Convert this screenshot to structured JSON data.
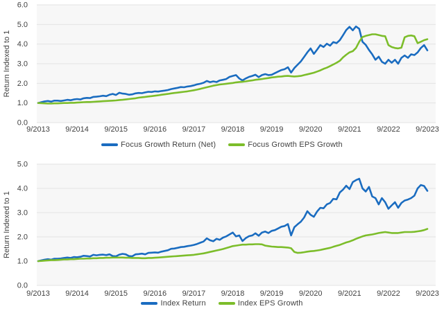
{
  "page": {
    "background": "#ffffff"
  },
  "colors": {
    "blue": "#1a6cc0",
    "green": "#7cbd2a",
    "grid": "#e3e3e3",
    "plot_bg": "#f7f7f7",
    "text": "#3f3f3f"
  },
  "chart_data": [
    {
      "type": "line",
      "title": "",
      "xlabel": "",
      "ylabel": "Return Indexed to 1",
      "ylim": [
        0,
        6
      ],
      "ytick_step": 1,
      "ytick_format_decimals": 1,
      "grid": "horizontal",
      "legend_position": "bottom",
      "frequency": "monthly",
      "x_start": "9/2013",
      "x_end": "9/2023",
      "x_tick_labels": [
        "9/2013",
        "9/2014",
        "9/2015",
        "9/2016",
        "9/2017",
        "9/2018",
        "9/2019",
        "9/2020",
        "9/2021",
        "9/2022",
        "9/2023"
      ],
      "series": [
        {
          "name": "Focus Growth Return (Net)",
          "color": "#1a6cc0",
          "values": [
            1.0,
            1.04,
            1.08,
            1.1,
            1.07,
            1.12,
            1.12,
            1.1,
            1.13,
            1.16,
            1.14,
            1.18,
            1.2,
            1.18,
            1.24,
            1.26,
            1.25,
            1.31,
            1.32,
            1.34,
            1.37,
            1.35,
            1.42,
            1.46,
            1.41,
            1.52,
            1.48,
            1.46,
            1.42,
            1.44,
            1.49,
            1.51,
            1.5,
            1.54,
            1.57,
            1.56,
            1.59,
            1.58,
            1.61,
            1.63,
            1.66,
            1.71,
            1.74,
            1.77,
            1.81,
            1.8,
            1.84,
            1.86,
            1.9,
            1.95,
            1.98,
            2.03,
            2.12,
            2.06,
            2.1,
            2.07,
            2.15,
            2.18,
            2.22,
            2.33,
            2.38,
            2.42,
            2.25,
            2.15,
            2.25,
            2.33,
            2.38,
            2.44,
            2.32,
            2.42,
            2.47,
            2.42,
            2.44,
            2.52,
            2.6,
            2.68,
            2.72,
            2.82,
            2.55,
            2.78,
            2.95,
            3.12,
            3.35,
            3.58,
            3.78,
            3.5,
            3.72,
            3.95,
            3.85,
            4.02,
            3.92,
            4.1,
            4.05,
            4.2,
            4.45,
            4.72,
            4.88,
            4.7,
            4.9,
            4.78,
            4.12,
            3.96,
            3.7,
            3.48,
            3.2,
            3.36,
            3.1,
            3.0,
            3.2,
            3.05,
            3.2,
            3.0,
            3.3,
            3.42,
            3.3,
            3.48,
            3.44,
            3.58,
            3.8,
            3.95,
            3.68
          ]
        },
        {
          "name": "Focus Growth EPS Growth",
          "color": "#7cbd2a",
          "values": [
            1.0,
            0.99,
            0.98,
            0.97,
            0.97,
            0.98,
            0.98,
            0.99,
            1.0,
            1.0,
            1.01,
            1.01,
            1.02,
            1.03,
            1.04,
            1.05,
            1.05,
            1.06,
            1.07,
            1.08,
            1.09,
            1.1,
            1.11,
            1.12,
            1.13,
            1.15,
            1.16,
            1.18,
            1.2,
            1.22,
            1.24,
            1.27,
            1.29,
            1.31,
            1.33,
            1.35,
            1.37,
            1.39,
            1.42,
            1.44,
            1.46,
            1.49,
            1.51,
            1.53,
            1.55,
            1.57,
            1.59,
            1.62,
            1.65,
            1.68,
            1.72,
            1.76,
            1.8,
            1.84,
            1.88,
            1.91,
            1.94,
            1.96,
            1.98,
            2.0,
            2.02,
            2.05,
            2.07,
            2.08,
            2.1,
            2.13,
            2.15,
            2.18,
            2.2,
            2.22,
            2.25,
            2.27,
            2.3,
            2.32,
            2.34,
            2.35,
            2.37,
            2.38,
            2.36,
            2.35,
            2.36,
            2.38,
            2.42,
            2.46,
            2.5,
            2.54,
            2.6,
            2.66,
            2.74,
            2.8,
            2.88,
            2.96,
            3.05,
            3.15,
            3.32,
            3.46,
            3.58,
            3.64,
            3.8,
            4.12,
            4.36,
            4.42,
            4.46,
            4.5,
            4.5,
            4.46,
            4.42,
            4.4,
            3.95,
            3.85,
            3.8,
            3.78,
            3.82,
            4.35,
            4.42,
            4.44,
            4.4,
            4.05,
            4.12,
            4.2,
            4.25
          ]
        }
      ]
    },
    {
      "type": "line",
      "title": "",
      "xlabel": "",
      "ylabel": "Return Indexed to 1",
      "ylim": [
        0,
        5
      ],
      "ytick_step": 1,
      "ytick_format_decimals": 1,
      "grid": "horizontal",
      "legend_position": "bottom",
      "frequency": "monthly",
      "x_start": "9/2013",
      "x_end": "9/2023",
      "x_tick_labels": [
        "9/2013",
        "9/2014",
        "9/2015",
        "9/2016",
        "9/2017",
        "9/2018",
        "9/2019",
        "9/2020",
        "9/2021",
        "9/2022",
        "9/2023"
      ],
      "series": [
        {
          "name": "Index Return",
          "color": "#1a6cc0",
          "values": [
            1.0,
            1.03,
            1.06,
            1.08,
            1.06,
            1.1,
            1.1,
            1.11,
            1.13,
            1.15,
            1.13,
            1.17,
            1.16,
            1.18,
            1.22,
            1.21,
            1.19,
            1.26,
            1.24,
            1.26,
            1.27,
            1.25,
            1.28,
            1.21,
            1.2,
            1.27,
            1.3,
            1.28,
            1.21,
            1.2,
            1.28,
            1.29,
            1.31,
            1.28,
            1.34,
            1.35,
            1.36,
            1.35,
            1.39,
            1.42,
            1.45,
            1.51,
            1.52,
            1.55,
            1.58,
            1.59,
            1.62,
            1.64,
            1.67,
            1.71,
            1.76,
            1.81,
            1.94,
            1.86,
            1.82,
            1.92,
            1.88,
            1.97,
            2.02,
            2.1,
            2.18,
            2.02,
            2.06,
            1.83,
            1.95,
            2.03,
            2.06,
            2.15,
            2.05,
            2.18,
            2.22,
            2.16,
            2.25,
            2.28,
            2.35,
            2.42,
            2.45,
            2.53,
            2.06,
            2.4,
            2.52,
            2.63,
            2.8,
            3.06,
            2.91,
            2.83,
            3.05,
            3.2,
            3.18,
            3.34,
            3.4,
            3.57,
            3.55,
            3.83,
            3.95,
            4.11,
            3.97,
            4.26,
            4.34,
            4.4,
            4.0,
            3.87,
            4.06,
            3.67,
            3.6,
            3.34,
            3.6,
            3.43,
            3.16,
            3.3,
            3.43,
            3.2,
            3.4,
            3.5,
            3.54,
            3.6,
            3.7,
            4.0,
            4.14,
            4.1,
            3.9
          ]
        },
        {
          "name": "Index EPS Growth",
          "color": "#7cbd2a",
          "values": [
            1.0,
            1.01,
            1.02,
            1.03,
            1.04,
            1.04,
            1.05,
            1.06,
            1.07,
            1.07,
            1.08,
            1.08,
            1.09,
            1.1,
            1.1,
            1.11,
            1.11,
            1.12,
            1.12,
            1.13,
            1.13,
            1.14,
            1.14,
            1.15,
            1.15,
            1.15,
            1.15,
            1.14,
            1.14,
            1.13,
            1.13,
            1.13,
            1.12,
            1.12,
            1.13,
            1.13,
            1.14,
            1.15,
            1.16,
            1.17,
            1.18,
            1.19,
            1.2,
            1.21,
            1.22,
            1.23,
            1.24,
            1.25,
            1.26,
            1.28,
            1.3,
            1.32,
            1.35,
            1.38,
            1.41,
            1.44,
            1.47,
            1.5,
            1.54,
            1.58,
            1.62,
            1.64,
            1.66,
            1.68,
            1.68,
            1.69,
            1.69,
            1.7,
            1.7,
            1.69,
            1.64,
            1.62,
            1.6,
            1.59,
            1.58,
            1.58,
            1.57,
            1.56,
            1.53,
            1.38,
            1.34,
            1.35,
            1.37,
            1.39,
            1.41,
            1.42,
            1.44,
            1.46,
            1.49,
            1.52,
            1.55,
            1.59,
            1.63,
            1.67,
            1.72,
            1.77,
            1.81,
            1.86,
            1.92,
            1.97,
            2.02,
            2.06,
            2.08,
            2.1,
            2.13,
            2.16,
            2.18,
            2.2,
            2.18,
            2.16,
            2.16,
            2.16,
            2.18,
            2.2,
            2.2,
            2.2,
            2.21,
            2.23,
            2.25,
            2.28,
            2.33
          ]
        }
      ]
    }
  ]
}
